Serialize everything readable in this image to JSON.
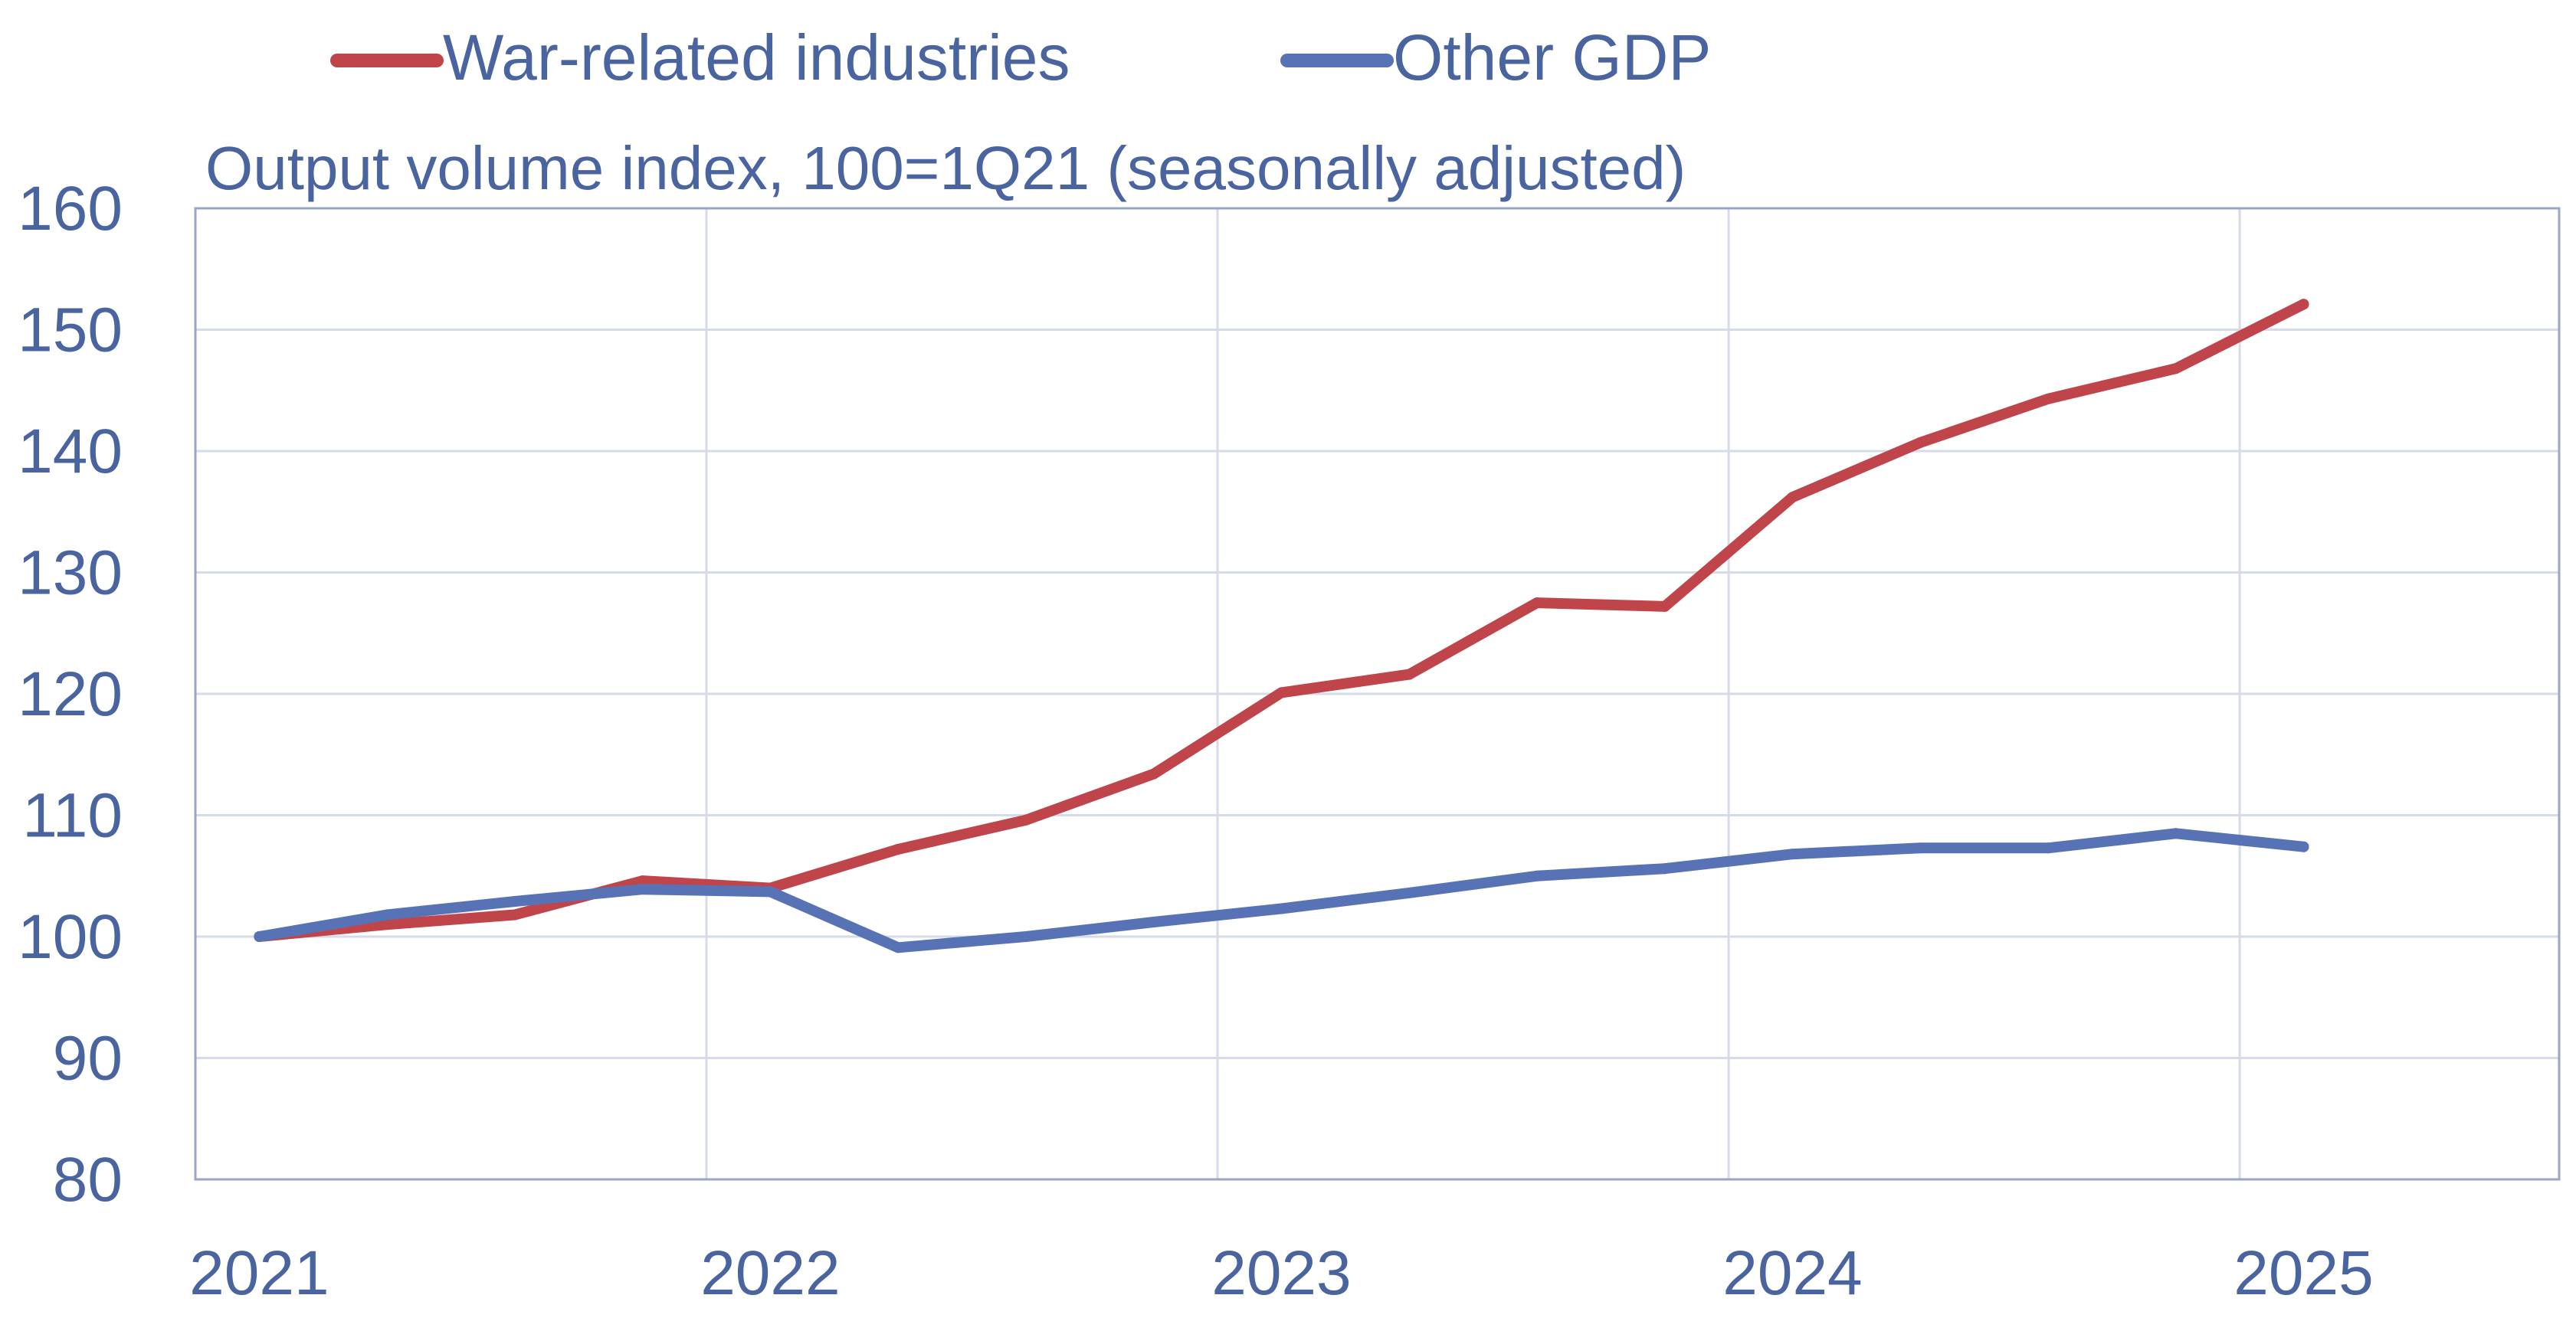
{
  "chart_data": {
    "type": "line",
    "title": "",
    "subtitle": "Output volume index, 100=1Q21 (seasonally adjusted)",
    "xlabel": "",
    "ylabel": "",
    "x_ticks": [
      "2021",
      "2022",
      "2023",
      "2024",
      "2025"
    ],
    "y_ticks": [
      "80",
      "90",
      "100",
      "110",
      "120",
      "130",
      "140",
      "150",
      "160"
    ],
    "ylim": [
      80,
      160
    ],
    "xlim": [
      2020.875,
      2025.5
    ],
    "grid": true,
    "legend_position": "top",
    "x": [
      2021.0,
      2021.25,
      2021.5,
      2021.75,
      2022.0,
      2022.25,
      2022.5,
      2022.75,
      2023.0,
      2023.25,
      2023.5,
      2023.75,
      2024.0,
      2024.25,
      2024.5,
      2024.75,
      2025.0
    ],
    "series": [
      {
        "name": "War-related industries",
        "color": "#c0454b",
        "values": [
          100.0,
          101.0,
          101.8,
          104.6,
          104.0,
          107.2,
          109.6,
          113.4,
          120.1,
          121.6,
          127.5,
          127.2,
          136.2,
          140.7,
          144.3,
          146.8,
          152.1
        ]
      },
      {
        "name": "Other GDP",
        "color": "#5873b5",
        "values": [
          100.0,
          101.8,
          102.9,
          103.9,
          103.7,
          99.1,
          100.0,
          101.2,
          102.3,
          103.6,
          105.0,
          105.6,
          106.8,
          107.3,
          107.3,
          108.5,
          107.4
        ]
      }
    ]
  },
  "colors": {
    "text": "#4a64a0",
    "grid": "#d6dbe9",
    "axis": "#98a6c8"
  }
}
